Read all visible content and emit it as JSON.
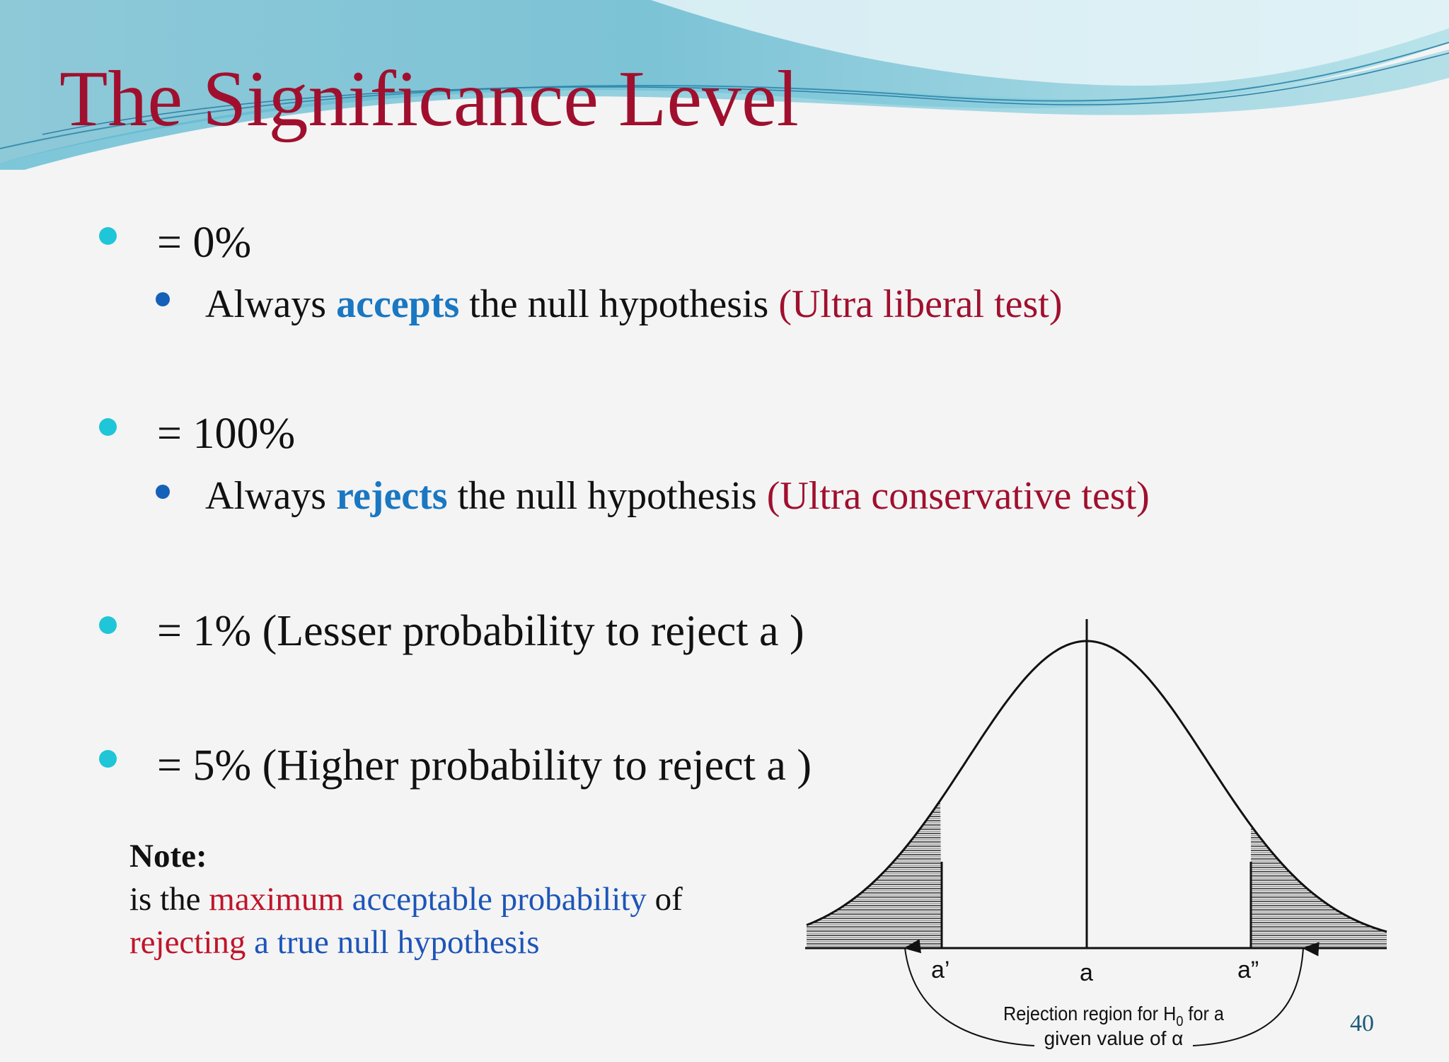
{
  "slide": {
    "title": "The Significance Level",
    "page_number": "40"
  },
  "bullets": [
    {
      "text": "= 0%",
      "sub": {
        "pre": "Always ",
        "key": "accepts",
        "mid": " the null hypothesis ",
        "tag": "(Ultra liberal test)"
      }
    },
    {
      "text": "= 100%",
      "sub": {
        "pre": "Always ",
        "key": "rejects",
        "mid": " the null hypothesis ",
        "tag": "(Ultra conservative test)"
      }
    },
    {
      "text": "= 1% (Lesser probability to reject a )"
    },
    {
      "text": "= 5% (Higher probability to reject a )"
    }
  ],
  "note": {
    "heading": "Note:",
    "line1_a": "is the ",
    "line1_b": "maximum",
    "line1_c": " acceptable probability",
    "line1_d": " of",
    "line2_a": "rejecting",
    "line2_b": " a true null hypothesis"
  },
  "diagram": {
    "label_left": "a’",
    "label_center": "a",
    "label_right": "a”",
    "caption_line1_pre": "Rejection region for H",
    "caption_sub": "0",
    "caption_line1_post": " for a",
    "caption_line2": "given value of α"
  },
  "colors": {
    "title": "#a0102e",
    "primary_bullet": "#1ec6d8",
    "secondary_bullet": "#1560b8",
    "emphasis_blue": "#1a77c2",
    "emphasis_red": "#a0102e"
  }
}
